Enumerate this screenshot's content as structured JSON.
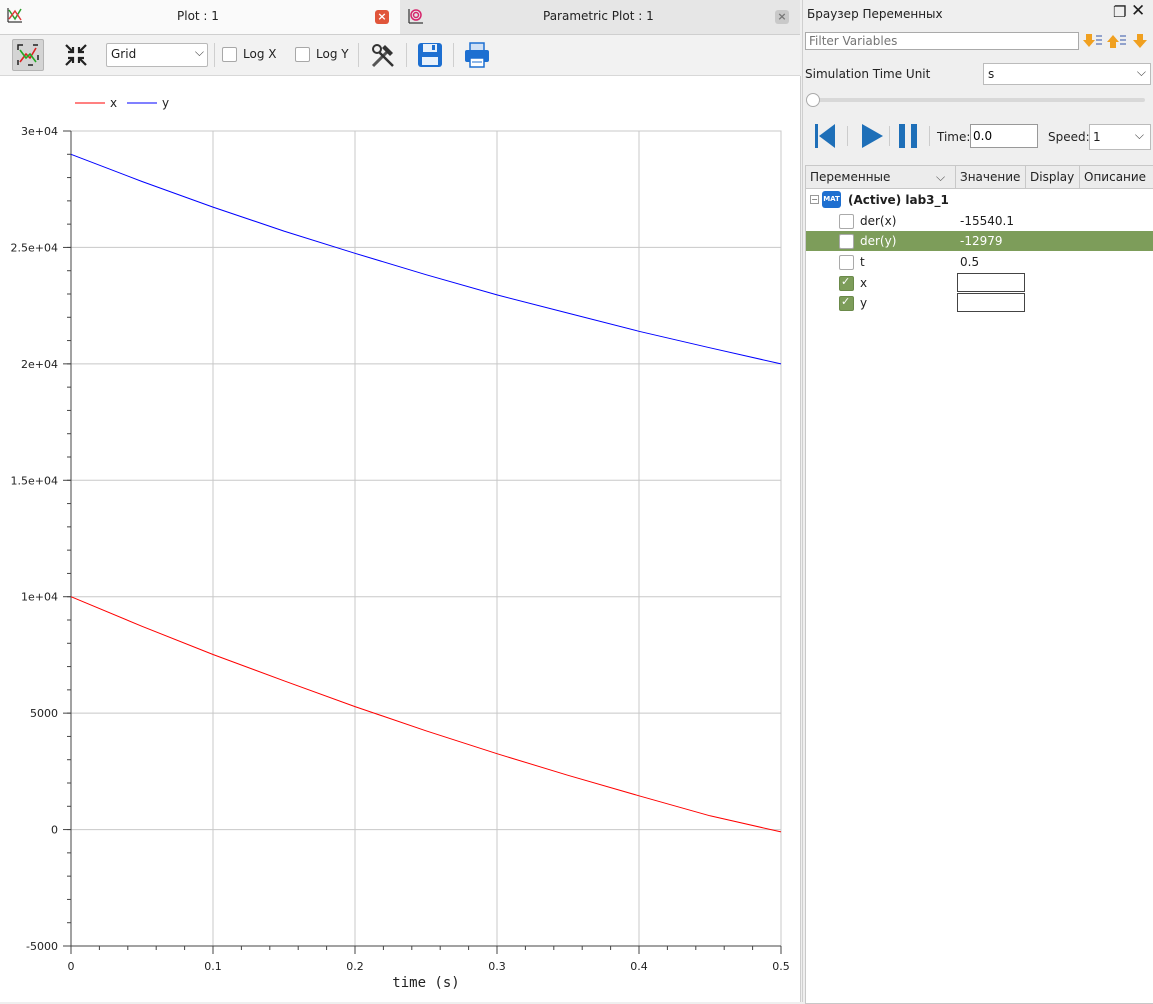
{
  "tabs": [
    {
      "label": "Plot : 1",
      "active": true
    },
    {
      "label": "Parametric Plot : 1",
      "active": false
    }
  ],
  "toolbar": {
    "grid_select": "Grid",
    "logx_label": "Log X",
    "logy_label": "Log Y"
  },
  "chart_data": {
    "type": "line",
    "xlabel": "time (s)",
    "ylabel": "",
    "xlim": [
      0,
      0.5
    ],
    "ylim": [
      -5000,
      30000
    ],
    "grid": true,
    "legend_position": "top-left",
    "x_ticks": [
      0,
      0.1,
      0.2,
      0.3,
      0.4,
      0.5
    ],
    "x_tick_labels": [
      "0",
      "0.1",
      "0.2",
      "0.3",
      "0.4",
      "0.5"
    ],
    "y_ticks": [
      -5000,
      0,
      5000,
      10000,
      15000,
      20000,
      25000,
      30000
    ],
    "y_tick_labels": [
      "-5000",
      "0",
      "5000",
      "1e+04",
      "1.5e+04",
      "2e+04",
      "2.5e+04",
      "3e+04"
    ],
    "series": [
      {
        "name": "x",
        "color": "#ff0000",
        "x": [
          0,
          0.05,
          0.1,
          0.15,
          0.2,
          0.25,
          0.3,
          0.35,
          0.4,
          0.45,
          0.5
        ],
        "y": [
          10000,
          8730,
          7520,
          6390,
          5280,
          4240,
          3260,
          2330,
          1450,
          590,
          -100
        ]
      },
      {
        "name": "y",
        "color": "#0000ff",
        "x": [
          0,
          0.05,
          0.1,
          0.15,
          0.2,
          0.25,
          0.3,
          0.35,
          0.4,
          0.45,
          0.5
        ],
        "y": [
          29000,
          27830,
          26730,
          25700,
          24750,
          23830,
          22960,
          22180,
          21400,
          20690,
          20000
        ]
      }
    ]
  },
  "browser": {
    "title": "Браузер Переменных",
    "filter_placeholder": "Filter Variables",
    "time_unit_label": "Simulation Time Unit",
    "time_unit_value": "s",
    "time_label": "Time:",
    "time_value": "0.0",
    "speed_label": "Speed:",
    "speed_value": "1",
    "columns": [
      "Переменные",
      "Значение",
      "Display",
      "Описание"
    ],
    "model": {
      "badge": "MAT",
      "name": "(Active) lab3_1"
    },
    "variables": [
      {
        "name": "der(x)",
        "value": "-15540.1",
        "checked": false
      },
      {
        "name": "der(y)",
        "value": "-12979",
        "checked": false
      },
      {
        "name": "t",
        "value": "0.5",
        "checked": false
      },
      {
        "name": "x",
        "value": "",
        "checked": true
      },
      {
        "name": "y",
        "value": "",
        "checked": true
      }
    ],
    "selected_variable": "der(y)"
  }
}
